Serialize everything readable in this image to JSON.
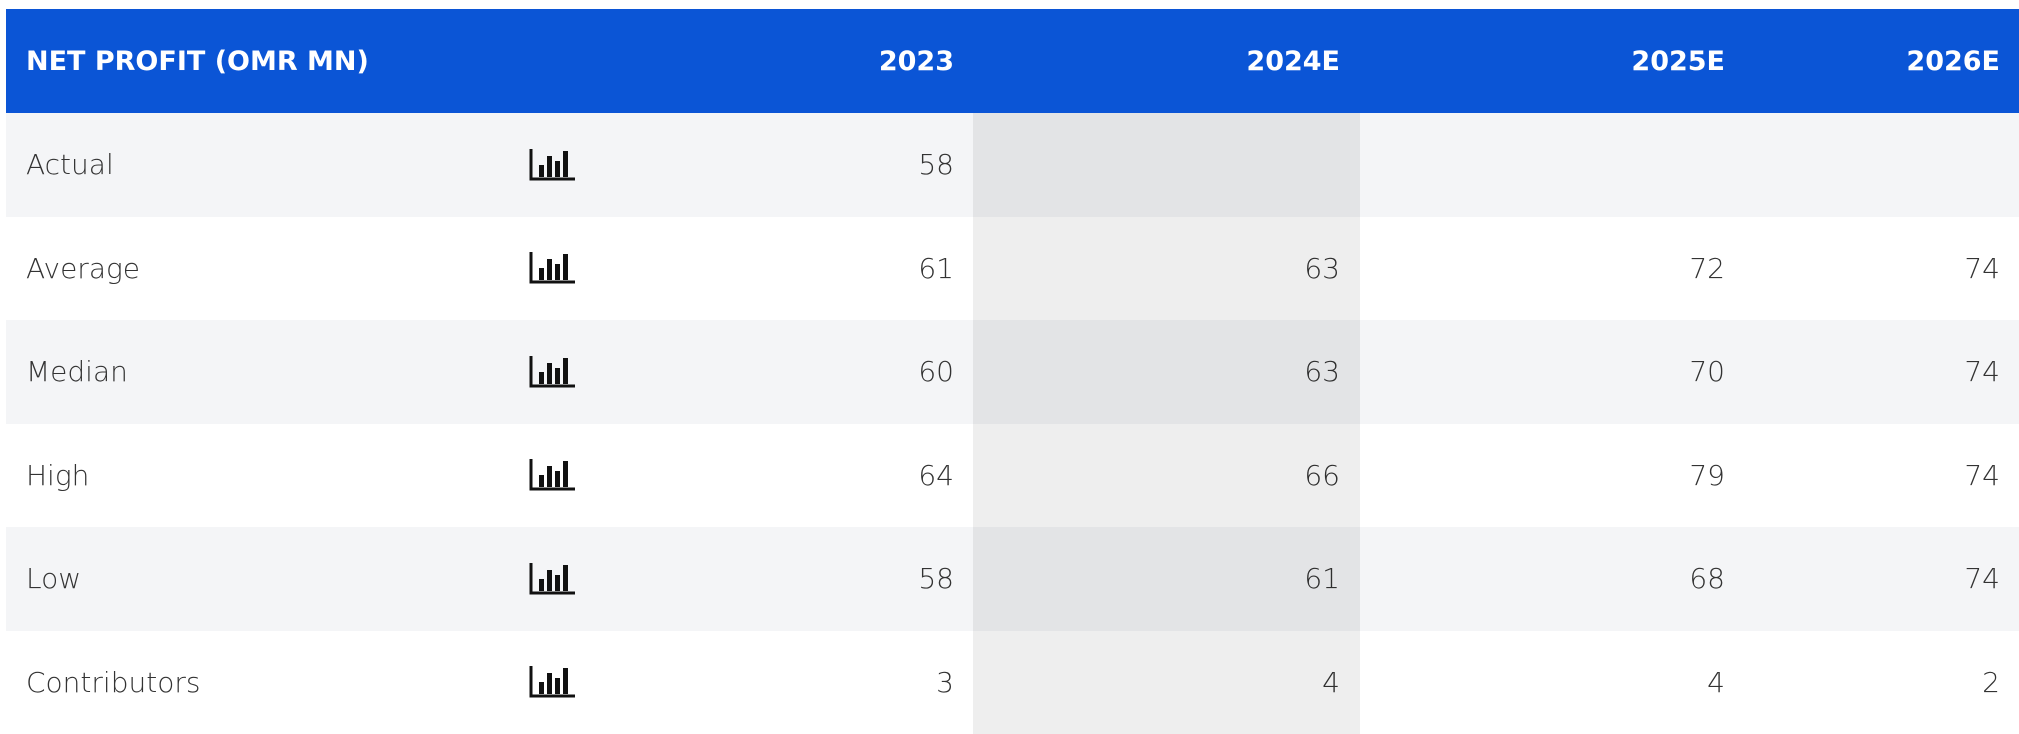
{
  "table": {
    "header": [
      "NET PROFIT (OMR MN)",
      "2023",
      "2024E",
      "2025E",
      "2026E"
    ],
    "rows": [
      [
        "Actual",
        58,
        null,
        null,
        null
      ],
      [
        "Average",
        61,
        63,
        72,
        74
      ],
      [
        "Median",
        60,
        63,
        70,
        74
      ],
      [
        "High",
        64,
        66,
        79,
        74
      ],
      [
        "Low",
        58,
        61,
        68,
        74
      ],
      [
        "Contributors",
        3,
        4,
        4,
        2
      ]
    ]
  }
}
